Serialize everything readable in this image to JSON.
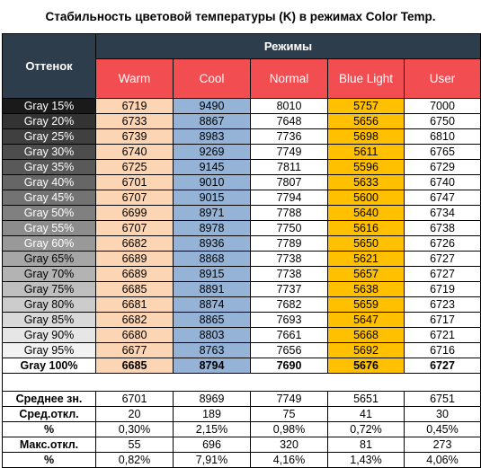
{
  "chart_data": {
    "type": "table",
    "title": "Стабильность цветовой температуры (K) в режимах Color Temp.",
    "row_header": "Оттенок",
    "group_header": "Режимы",
    "columns": [
      "Warm",
      "Cool",
      "Normal",
      "Blue Light",
      "User"
    ],
    "column_colors": [
      "#fcd5b5",
      "#95b3d7",
      "#ffffff",
      "#ffc000",
      "#ffffff"
    ],
    "header_color": "#2e3d4c",
    "mode_header_color": "#f24e51",
    "rows": [
      {
        "label": "Gray 15%",
        "values": [
          "6719",
          "9490",
          "8010",
          "5757",
          "7000"
        ]
      },
      {
        "label": "Gray 20%",
        "values": [
          "6733",
          "8867",
          "7648",
          "5656",
          "6750"
        ]
      },
      {
        "label": "Gray 25%",
        "values": [
          "6739",
          "8983",
          "7736",
          "5698",
          "6810"
        ]
      },
      {
        "label": "Gray 30%",
        "values": [
          "6740",
          "9269",
          "7749",
          "5611",
          "6765"
        ]
      },
      {
        "label": "Gray 35%",
        "values": [
          "6725",
          "9145",
          "7811",
          "5596",
          "6729"
        ]
      },
      {
        "label": "Gray 40%",
        "values": [
          "6701",
          "9010",
          "7807",
          "5633",
          "6740"
        ]
      },
      {
        "label": "Gray 45%",
        "values": [
          "6707",
          "9015",
          "7794",
          "5600",
          "6747"
        ]
      },
      {
        "label": "Gray 50%",
        "values": [
          "6699",
          "8971",
          "7788",
          "5640",
          "6734"
        ]
      },
      {
        "label": "Gray 55%",
        "values": [
          "6707",
          "8978",
          "7750",
          "5616",
          "6738"
        ]
      },
      {
        "label": "Gray 60%",
        "values": [
          "6682",
          "8936",
          "7789",
          "5650",
          "6726"
        ]
      },
      {
        "label": "Gray 65%",
        "values": [
          "6689",
          "8868",
          "7738",
          "5621",
          "6727"
        ]
      },
      {
        "label": "Gray 70%",
        "values": [
          "6689",
          "8915",
          "7738",
          "5657",
          "6727"
        ]
      },
      {
        "label": "Gray 75%",
        "values": [
          "6685",
          "8891",
          "7737",
          "5638",
          "6719"
        ]
      },
      {
        "label": "Gray 80%",
        "values": [
          "6681",
          "8874",
          "7682",
          "5659",
          "6723"
        ]
      },
      {
        "label": "Gray 85%",
        "values": [
          "6682",
          "8865",
          "7693",
          "5647",
          "6717"
        ]
      },
      {
        "label": "Gray 90%",
        "values": [
          "6680",
          "8803",
          "7661",
          "5668",
          "6721"
        ]
      },
      {
        "label": "Gray 95%",
        "values": [
          "6677",
          "8763",
          "7656",
          "5692",
          "6716"
        ]
      },
      {
        "label": "Gray 100%",
        "values": [
          "6685",
          "8794",
          "7690",
          "5676",
          "6727"
        ],
        "bold": true
      }
    ],
    "row_label_colors": [
      "#1a1a1a",
      "#333333",
      "#404040",
      "#4d4d4d",
      "#595959",
      "#666666",
      "#737373",
      "#808080",
      "#8c8c8c",
      "#999999",
      "#a6a6a6",
      "#b3b3b3",
      "#bfbfbf",
      "#cccccc",
      "#d9d9d9",
      "#e6e6e6",
      "#f2f2f2",
      "#ffffff"
    ],
    "row_label_text_colors": [
      "#ffffff",
      "#ffffff",
      "#ffffff",
      "#ffffff",
      "#ffffff",
      "#ffffff",
      "#ffffff",
      "#ffffff",
      "#ffffff",
      "#ffffff",
      "#000000",
      "#000000",
      "#000000",
      "#000000",
      "#000000",
      "#000000",
      "#000000",
      "#000000"
    ],
    "stats": [
      {
        "label": "Среднее зн.",
        "values": [
          "6701",
          "8969",
          "7749",
          "5651",
          "6751"
        ]
      },
      {
        "label": "Сред.откл.",
        "values": [
          "20",
          "189",
          "75",
          "41",
          "30"
        ]
      },
      {
        "label": "%",
        "values": [
          "0,30%",
          "2,15%",
          "0,98%",
          "0,72%",
          "0,45%"
        ]
      },
      {
        "label": "Макс.откл.",
        "values": [
          "55",
          "696",
          "320",
          "81",
          "273"
        ]
      },
      {
        "label": "%",
        "values": [
          "0,82%",
          "7,91%",
          "4,16%",
          "1,43%",
          "4,06%"
        ]
      }
    ]
  }
}
